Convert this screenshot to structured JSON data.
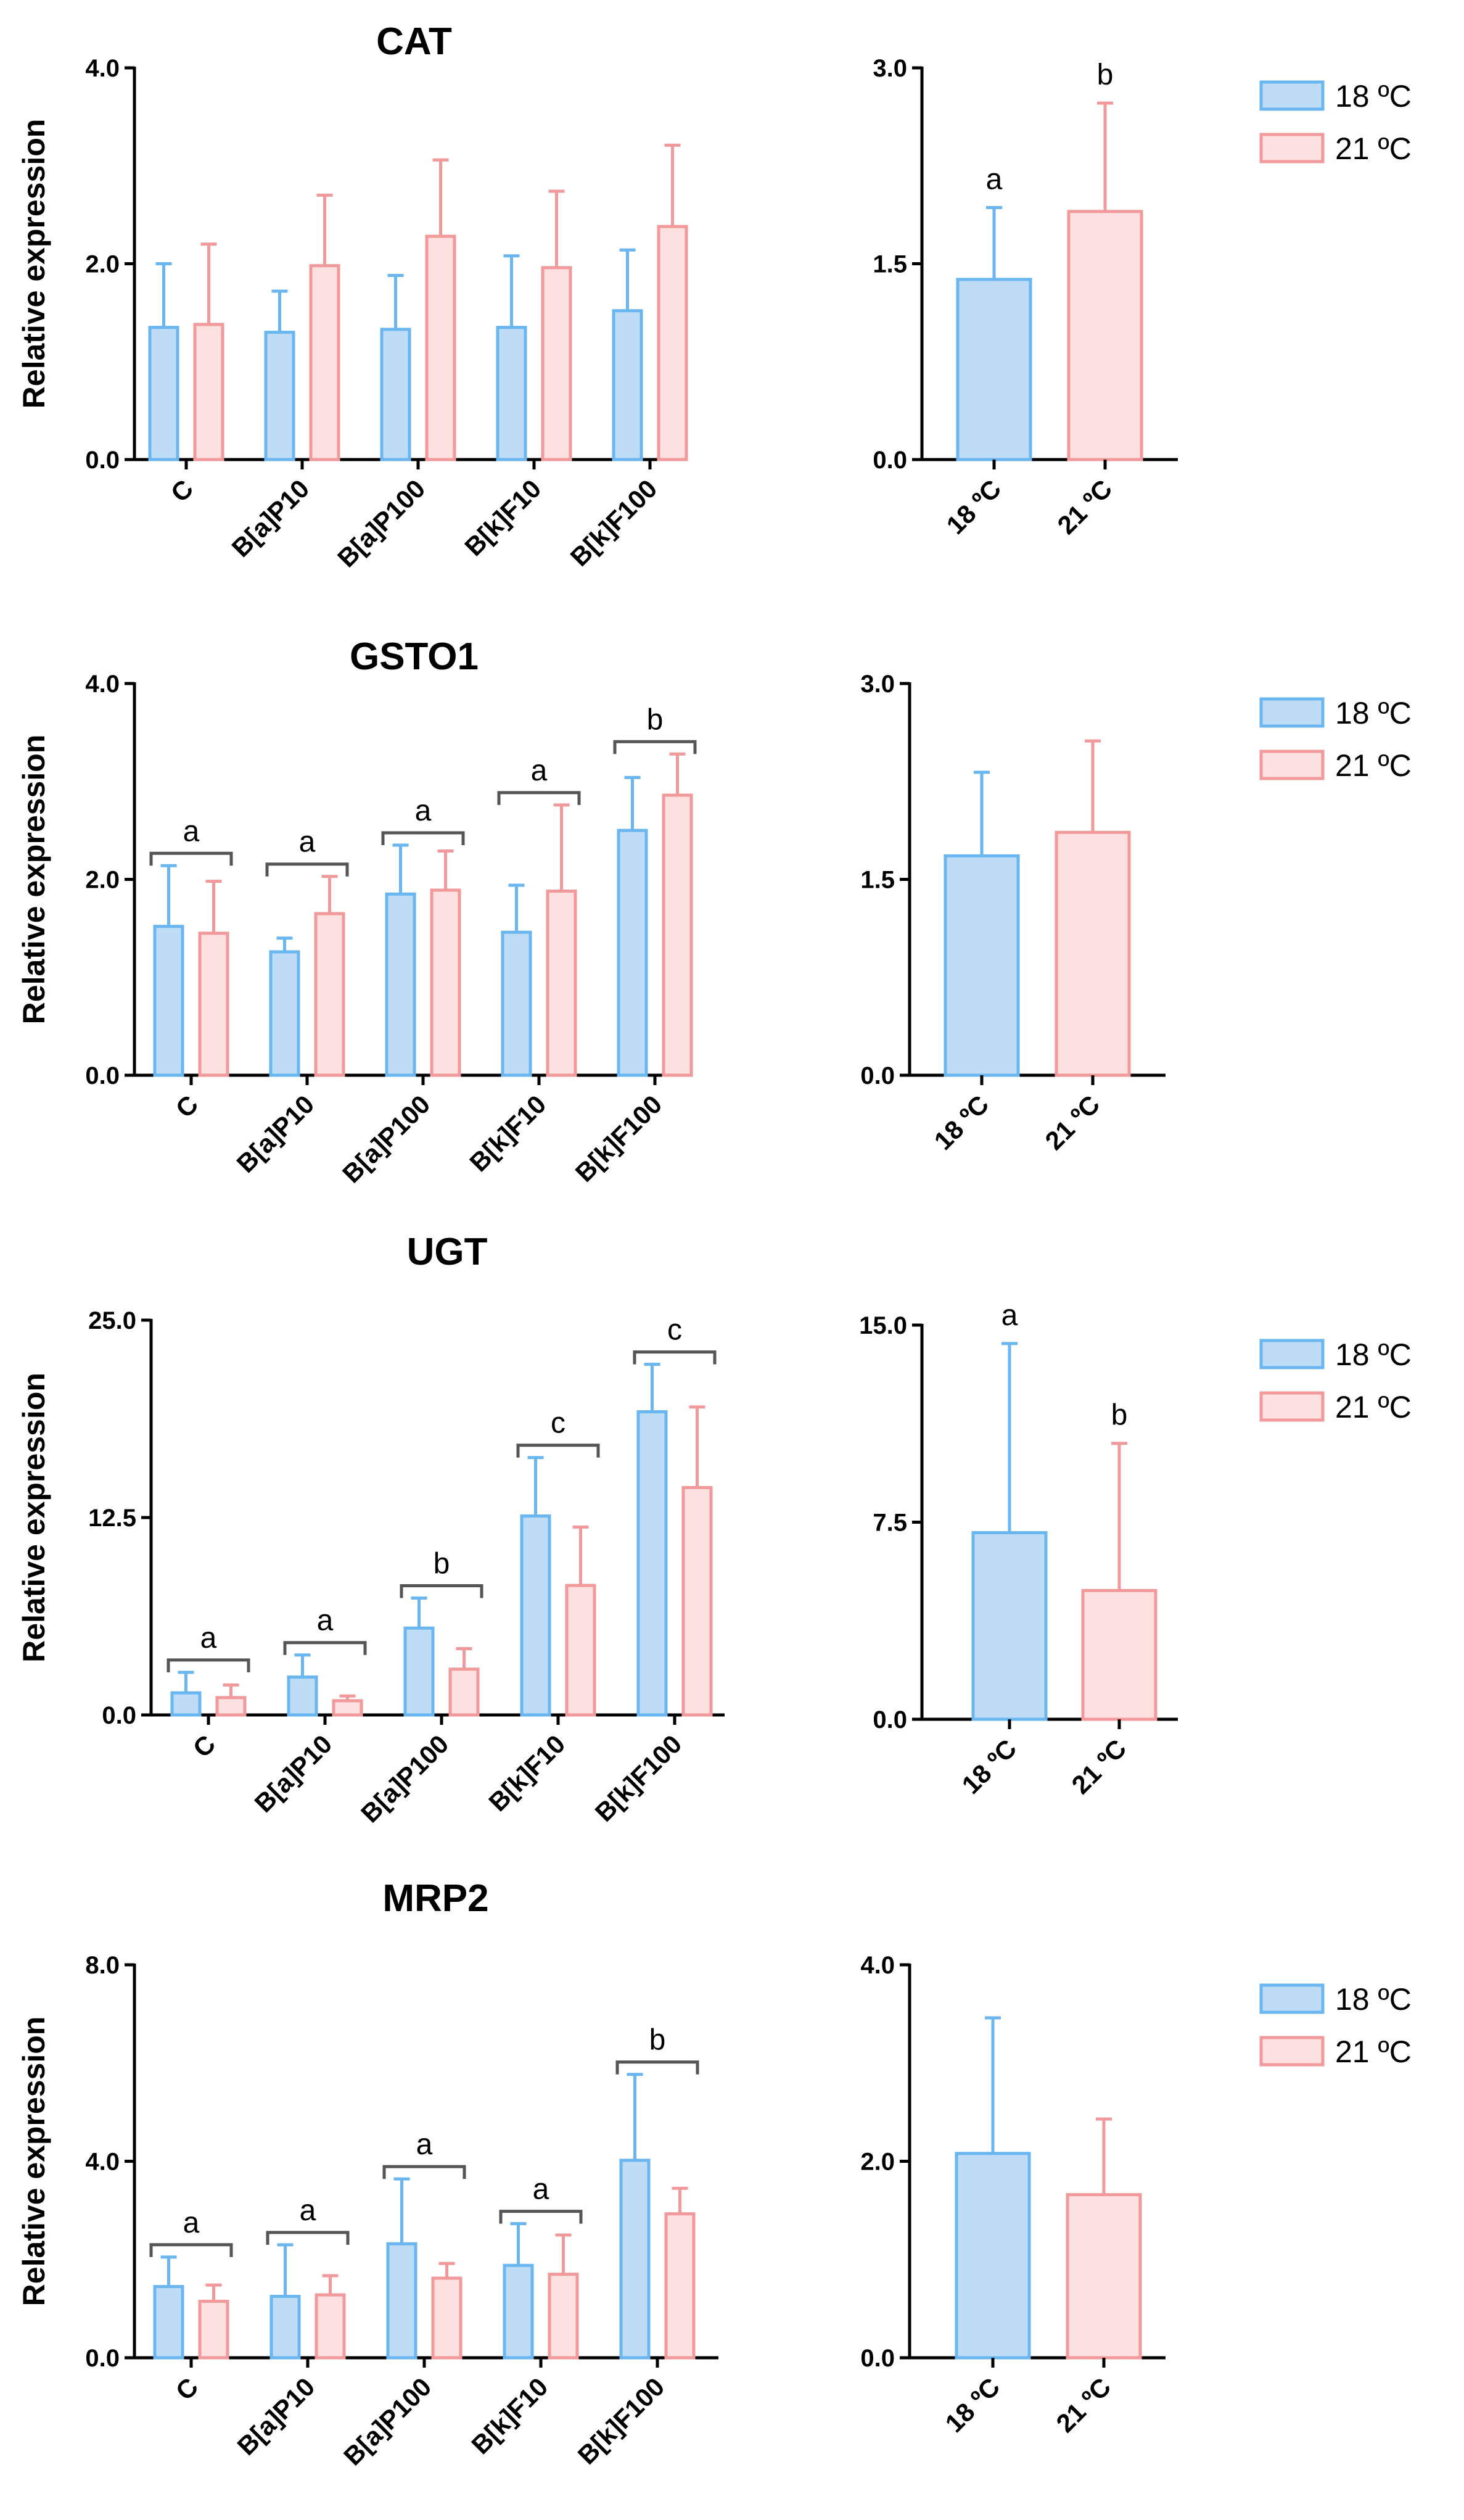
{
  "colors": {
    "s18_fill": "#bfdcf7",
    "s18_stroke": "#6ab6f0",
    "s21_fill": "#fde1e1",
    "s21_stroke": "#f1999b",
    "axis": "#000000",
    "bracket": "#555555"
  },
  "legend": [
    {
      "name": "18 ºC",
      "key": "s18"
    },
    {
      "name": "21 ºC",
      "key": "s21"
    }
  ],
  "chart_data": [
    {
      "type": "bar",
      "gene": "CAT",
      "title": "CAT",
      "ylabel": "Relative expression",
      "ylim": [
        0,
        4
      ],
      "yticks": [
        "0.0",
        "2.0",
        "4.0"
      ],
      "categories": [
        "C",
        "B[a]P10",
        "B[a]P100",
        "B[k]F10",
        "B[k]F100"
      ],
      "series": [
        {
          "name": "18 ºC",
          "values": [
            1.35,
            1.3,
            1.33,
            1.35,
            1.52
          ],
          "errors": [
            0.65,
            0.42,
            0.55,
            0.73,
            0.62
          ]
        },
        {
          "name": "21 ºC",
          "values": [
            1.38,
            1.98,
            2.28,
            1.96,
            2.38
          ],
          "errors": [
            0.82,
            0.72,
            0.78,
            0.78,
            0.83
          ]
        }
      ],
      "group_letters": [],
      "summary": {
        "ylim": [
          0,
          3
        ],
        "yticks": [
          "0.0",
          "1.5",
          "3.0"
        ],
        "categories": [
          "18 ºC",
          "21 ºC"
        ],
        "values": [
          1.38,
          1.9
        ],
        "errors": [
          0.55,
          0.83
        ],
        "letters": [
          "a",
          "b"
        ]
      }
    },
    {
      "type": "bar",
      "gene": "GSTO1",
      "title": "GSTO1",
      "ylabel": "Relative expression",
      "ylim": [
        0,
        4
      ],
      "yticks": [
        "0.0",
        "2.0",
        "4.0"
      ],
      "categories": [
        "C",
        "B[a]P10",
        "B[a]P100",
        "B[k]F10",
        "B[k]F100"
      ],
      "series": [
        {
          "name": "18 ºC",
          "values": [
            1.52,
            1.26,
            1.85,
            1.46,
            2.5
          ],
          "errors": [
            0.62,
            0.14,
            0.5,
            0.48,
            0.54
          ]
        },
        {
          "name": "21 ºC",
          "values": [
            1.45,
            1.65,
            1.89,
            1.88,
            2.86
          ],
          "errors": [
            0.53,
            0.38,
            0.4,
            0.88,
            0.42
          ]
        }
      ],
      "group_letters": [
        "a",
        "a",
        "a",
        "a",
        "b"
      ],
      "summary": {
        "ylim": [
          0,
          3
        ],
        "yticks": [
          "0.0",
          "1.5",
          "3.0"
        ],
        "categories": [
          "18 ºC",
          "21 ºC"
        ],
        "values": [
          1.68,
          1.86
        ],
        "errors": [
          0.64,
          0.7
        ],
        "letters": [
          "",
          ""
        ]
      }
    },
    {
      "type": "bar",
      "gene": "UGT",
      "title": "UGT",
      "ylabel": "Relative expression",
      "ylim": [
        0,
        25
      ],
      "yticks": [
        "0.0",
        "12.5",
        "25.0"
      ],
      "categories": [
        "C",
        "B[a]P10",
        "B[a]P100",
        "B[k]F10",
        "B[k]F100"
      ],
      "series": [
        {
          "name": "18 ºC",
          "values": [
            1.4,
            2.4,
            5.5,
            12.6,
            19.2
          ],
          "errors": [
            1.3,
            1.4,
            1.9,
            3.7,
            3.0
          ]
        },
        {
          "name": "21 ºC",
          "values": [
            1.1,
            0.9,
            2.9,
            8.2,
            14.4
          ],
          "errors": [
            0.8,
            0.3,
            1.3,
            3.7,
            5.1
          ]
        }
      ],
      "group_letters": [
        "a",
        "a",
        "b",
        "c",
        "c"
      ],
      "summary": {
        "ylim": [
          0,
          15
        ],
        "yticks": [
          "0.0",
          "7.5",
          "15.0"
        ],
        "categories": [
          "18 ºC",
          "21 ºC"
        ],
        "values": [
          7.1,
          4.9
        ],
        "errors": [
          7.2,
          5.6
        ],
        "letters": [
          "a",
          "b"
        ]
      }
    },
    {
      "type": "bar",
      "gene": "MRP2",
      "title": "MRP2",
      "ylabel": "Relative expression",
      "ylim": [
        0,
        8
      ],
      "yticks": [
        "0.0",
        "4.0",
        "8.0"
      ],
      "categories": [
        "C",
        "B[a]P10",
        "B[a]P100",
        "B[k]F10",
        "B[k]F100"
      ],
      "series": [
        {
          "name": "18 ºC",
          "values": [
            1.45,
            1.25,
            2.32,
            1.88,
            4.02
          ],
          "errors": [
            0.6,
            1.05,
            1.32,
            0.85,
            1.75
          ]
        },
        {
          "name": "21 ºC",
          "values": [
            1.15,
            1.28,
            1.62,
            1.7,
            2.93
          ],
          "errors": [
            0.33,
            0.39,
            0.3,
            0.8,
            0.52
          ]
        }
      ],
      "group_letters": [
        "a",
        "a",
        "a",
        "a",
        "b"
      ],
      "summary": {
        "ylim": [
          0,
          4
        ],
        "yticks": [
          "0.0",
          "2.0",
          "4.0"
        ],
        "categories": [
          "18 ºC",
          "21 ºC"
        ],
        "values": [
          2.08,
          1.66
        ],
        "errors": [
          1.38,
          0.77
        ],
        "letters": [
          "",
          ""
        ]
      }
    }
  ]
}
